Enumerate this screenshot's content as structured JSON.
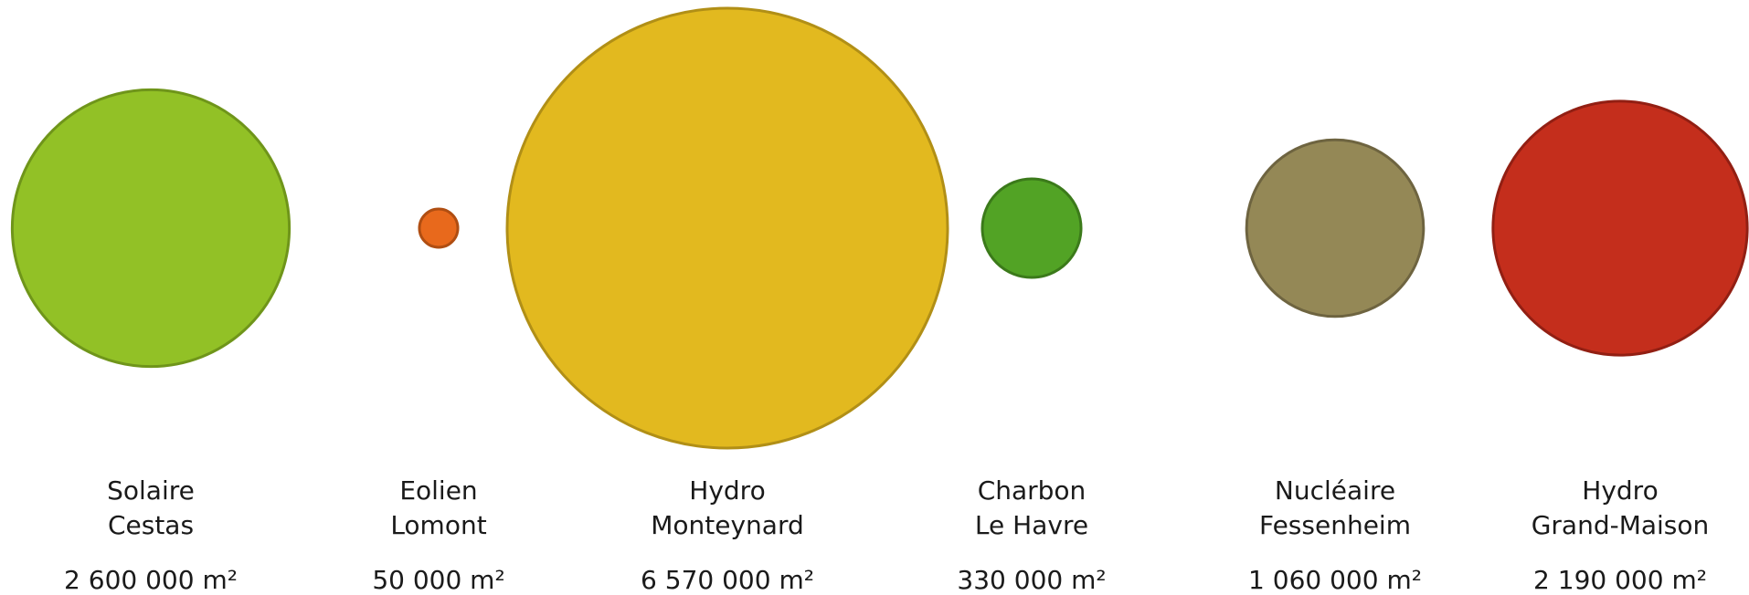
{
  "chart_data": {
    "type": "bubble",
    "unit": "m²",
    "items": [
      {
        "category": "Solaire",
        "place": "Cestas",
        "value": 2600000,
        "value_label": "2 600 000 m²",
        "fill": "#92C126",
        "stroke": "#6F951A"
      },
      {
        "category": "Eolien",
        "place": "Lomont",
        "value": 50000,
        "value_label": "50 000 m²",
        "fill": "#E8691C",
        "stroke": "#B04E12"
      },
      {
        "category": "Hydro",
        "place": "Monteynard",
        "value": 6570000,
        "value_label": "6 570 000 m²",
        "fill": "#E2B91F",
        "stroke": "#B18F16"
      },
      {
        "category": "Charbon",
        "place": "Le Havre",
        "value": 330000,
        "value_label": "330 000 m²",
        "fill": "#52A325",
        "stroke": "#3B7A1A"
      },
      {
        "category": "Nucléaire",
        "place": "Fessenheim",
        "value": 1060000,
        "value_label": "1 060 000 m²",
        "fill": "#948856",
        "stroke": "#6E6440"
      },
      {
        "category": "Hydro",
        "place": "Grand-Maison",
        "value": 2190000,
        "value_label": "2 190 000 m²",
        "fill": "#C42E1C",
        "stroke": "#921F13"
      }
    ]
  }
}
